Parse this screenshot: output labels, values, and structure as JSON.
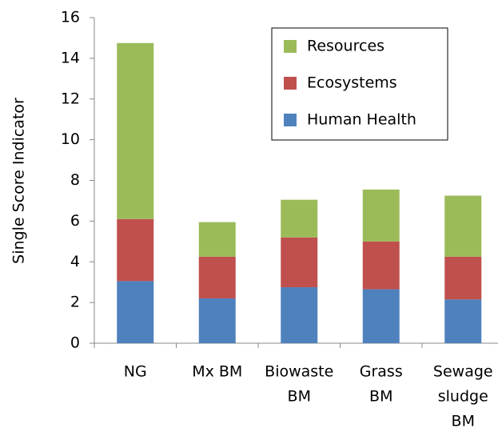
{
  "chart_data": {
    "type": "stacked_bar",
    "y_label": "Single Score Indicator",
    "categories": [
      [
        "NG"
      ],
      [
        "Mx BM"
      ],
      [
        "Biowaste",
        "BM"
      ],
      [
        "Grass",
        "BM"
      ],
      [
        "Sewage",
        "sludge",
        "BM"
      ]
    ],
    "series": [
      {
        "name": "Human Health",
        "color": "#4f81bd",
        "values": [
          3.05,
          2.2,
          2.75,
          2.65,
          2.15
        ]
      },
      {
        "name": "Ecosystems",
        "color": "#c0504d",
        "values": [
          3.05,
          2.05,
          2.45,
          2.35,
          2.1
        ]
      },
      {
        "name": "Resources",
        "color": "#9bbb59",
        "values": [
          8.65,
          1.7,
          1.85,
          2.55,
          3.0
        ]
      }
    ],
    "ylim": [
      0,
      16
    ],
    "yticks": [
      0,
      2,
      4,
      6,
      8,
      10,
      12,
      14,
      16
    ],
    "grid": false
  }
}
